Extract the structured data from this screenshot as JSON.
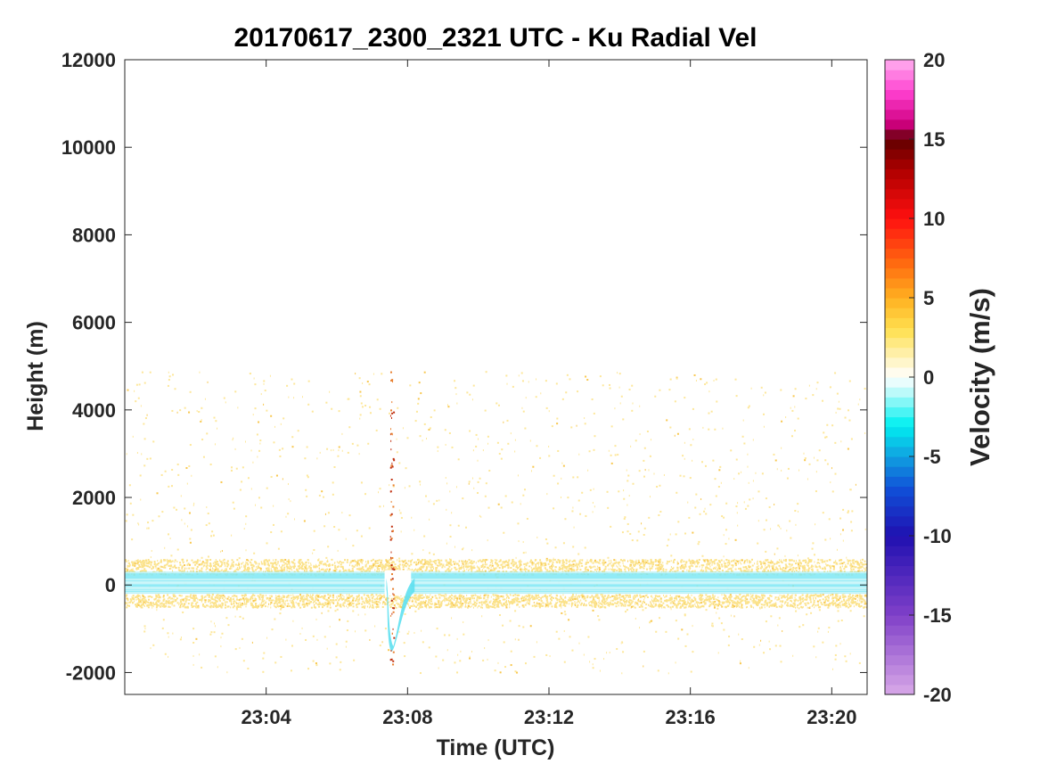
{
  "chart_data": {
    "type": "heatmap",
    "title": "20170617_2300_2321 UTC - Ku Radial Vel",
    "xlabel": "Time (UTC)",
    "ylabel": "Height (m)",
    "colorbar_label": "Velocity (m/s)",
    "xlim_minutes_after_2300": [
      0,
      21
    ],
    "ylim": [
      -2500,
      12000
    ],
    "x_ticks": [
      {
        "value": 4,
        "label": "23:04"
      },
      {
        "value": 8,
        "label": "23:08"
      },
      {
        "value": 12,
        "label": "23:12"
      },
      {
        "value": 16,
        "label": "23:16"
      },
      {
        "value": 20,
        "label": "23:20"
      }
    ],
    "y_ticks": [
      {
        "value": 12000,
        "label": "12000"
      },
      {
        "value": 10000,
        "label": "10000"
      },
      {
        "value": 8000,
        "label": "8000"
      },
      {
        "value": 6000,
        "label": "6000"
      },
      {
        "value": 4000,
        "label": "4000"
      },
      {
        "value": 2000,
        "label": "2000"
      },
      {
        "value": 0,
        "label": "0"
      },
      {
        "value": -2000,
        "label": "-2000"
      }
    ],
    "clim": [
      -20,
      20
    ],
    "colorbar_ticks": [
      {
        "value": 20,
        "label": "20"
      },
      {
        "value": 15,
        "label": "15"
      },
      {
        "value": 10,
        "label": "10"
      },
      {
        "value": 5,
        "label": "5"
      },
      {
        "value": 0,
        "label": "0"
      },
      {
        "value": -5,
        "label": "-5"
      },
      {
        "value": -10,
        "label": "-10"
      },
      {
        "value": -15,
        "label": "-15"
      },
      {
        "value": -20,
        "label": "-20"
      }
    ],
    "colormap_stops": [
      {
        "v": -20,
        "color": "#d8a8e8"
      },
      {
        "v": -15,
        "color": "#8040c8"
      },
      {
        "v": -10,
        "color": "#2010b0"
      },
      {
        "v": -7,
        "color": "#1050d8"
      },
      {
        "v": -5,
        "color": "#10a0e0"
      },
      {
        "v": -3,
        "color": "#00f0f0"
      },
      {
        "v": -1,
        "color": "#b8fafa"
      },
      {
        "v": 0,
        "color": "#ffffff"
      },
      {
        "v": 1,
        "color": "#fff5c8"
      },
      {
        "v": 3,
        "color": "#ffe050"
      },
      {
        "v": 5,
        "color": "#ffb020"
      },
      {
        "v": 7,
        "color": "#ff7010"
      },
      {
        "v": 10,
        "color": "#ff1010"
      },
      {
        "v": 13,
        "color": "#b00000"
      },
      {
        "v": 15,
        "color": "#600000"
      },
      {
        "v": 16,
        "color": "#d00080"
      },
      {
        "v": 18,
        "color": "#ff40d0"
      },
      {
        "v": 20,
        "color": "#ffb0f0"
      }
    ],
    "features": [
      {
        "name": "sparse noise",
        "x_range": [
          0,
          21
        ],
        "height_range": [
          -2000,
          4900
        ],
        "velocity": 2,
        "color": "#fde79a"
      },
      {
        "name": "upper noise band",
        "x_range": [
          0,
          21
        ],
        "height_range": [
          250,
          600
        ],
        "velocity": 2,
        "color": "#fbe28a"
      },
      {
        "name": "lower noise band",
        "x_range": [
          0,
          21
        ],
        "height_range": [
          -500,
          -200
        ],
        "velocity": 2,
        "color": "#fbe28a"
      },
      {
        "name": "surface return",
        "x_range": [
          0,
          21
        ],
        "height_range": [
          -200,
          300
        ],
        "velocity": -2,
        "color": "#7ee8f4"
      },
      {
        "name": "dip near 23:07.5",
        "x_range": [
          7.4,
          8.2
        ],
        "height_range": [
          -1400,
          200
        ],
        "velocity": -2,
        "color": "#5ee0f0"
      },
      {
        "name": "vertical streak",
        "x_range": [
          7.5,
          7.6
        ],
        "height_range": [
          -1800,
          4900
        ],
        "velocity": 6,
        "color": "#e88030"
      }
    ]
  }
}
